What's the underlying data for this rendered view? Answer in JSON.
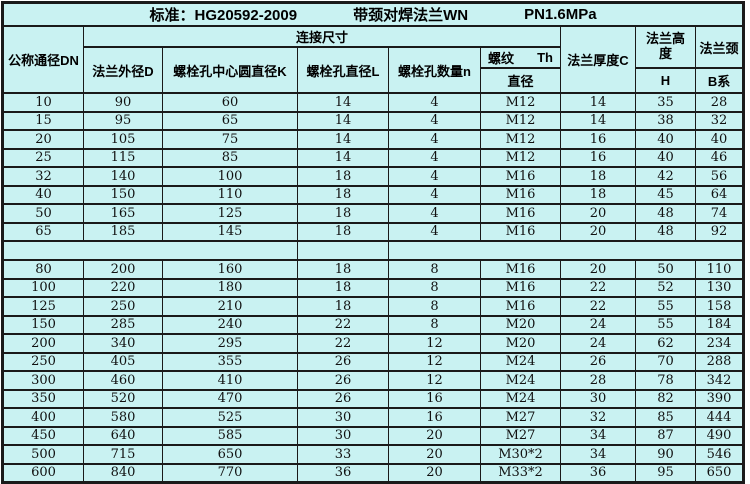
{
  "title": {
    "standard": "标准：HG20592-2009",
    "product": "带颈对焊法兰WN",
    "pressure": "PN1.6MPa"
  },
  "header": {
    "dn": "公称通径DN",
    "connection_group": "连接尺寸",
    "flange_od": "法兰外径D",
    "bolt_circle": "螺栓孔中心圆直径K",
    "bolt_hole_dia": "螺栓孔直径L",
    "bolt_count": "螺栓孔数量n",
    "thread": "螺纹",
    "thread_symbol": "Th",
    "thread_sub": "直径",
    "thickness": "法兰厚度C",
    "height_group": "法兰高度",
    "height_sub": "H",
    "neck_group": "法兰颈",
    "neck_sub": "B系"
  },
  "colors": {
    "cell_background": "#c9f2f2",
    "grid_line": "#1a1a1a",
    "page_background": "#ffffff"
  },
  "table": {
    "columns": [
      "公称通径DN",
      "法兰外径D",
      "螺栓孔中心圆直径K",
      "螺栓孔直径L",
      "螺栓孔数量n",
      "螺纹Th直径",
      "法兰厚度C",
      "法兰高度H",
      "法兰颈B系"
    ],
    "rows": [
      [
        "10",
        "90",
        "60",
        "14",
        "4",
        "M12",
        "14",
        "35",
        "28"
      ],
      [
        "15",
        "95",
        "65",
        "14",
        "4",
        "M12",
        "14",
        "38",
        "32"
      ],
      [
        "20",
        "105",
        "75",
        "14",
        "4",
        "M12",
        "16",
        "40",
        "40"
      ],
      [
        "25",
        "115",
        "85",
        "14",
        "4",
        "M12",
        "16",
        "40",
        "46"
      ],
      [
        "32",
        "140",
        "100",
        "18",
        "4",
        "M16",
        "18",
        "42",
        "56"
      ],
      [
        "40",
        "150",
        "110",
        "18",
        "4",
        "M16",
        "18",
        "45",
        "64"
      ],
      [
        "50",
        "165",
        "125",
        "18",
        "4",
        "M16",
        "20",
        "48",
        "74"
      ],
      [
        "65",
        "185",
        "145",
        "18",
        "4",
        "M16",
        "20",
        "48",
        "92"
      ],
      {
        "spacer": true
      },
      [
        "80",
        "200",
        "160",
        "18",
        "8",
        "M16",
        "20",
        "50",
        "110"
      ],
      [
        "100",
        "220",
        "180",
        "18",
        "8",
        "M16",
        "22",
        "52",
        "130"
      ],
      [
        "125",
        "250",
        "210",
        "18",
        "8",
        "M16",
        "22",
        "55",
        "158"
      ],
      [
        "150",
        "285",
        "240",
        "22",
        "8",
        "M20",
        "24",
        "55",
        "184"
      ],
      [
        "200",
        "340",
        "295",
        "22",
        "12",
        "M20",
        "24",
        "62",
        "234"
      ],
      [
        "250",
        "405",
        "355",
        "26",
        "12",
        "M24",
        "26",
        "70",
        "288"
      ],
      [
        "300",
        "460",
        "410",
        "26",
        "12",
        "M24",
        "28",
        "78",
        "342"
      ],
      [
        "350",
        "520",
        "470",
        "26",
        "16",
        "M24",
        "30",
        "82",
        "390"
      ],
      [
        "400",
        "580",
        "525",
        "30",
        "16",
        "M27",
        "32",
        "85",
        "444"
      ],
      [
        "450",
        "640",
        "585",
        "30",
        "20",
        "M27",
        "34",
        "87",
        "490"
      ],
      [
        "500",
        "715",
        "650",
        "33",
        "20",
        "M30*2",
        "34",
        "90",
        "546"
      ],
      [
        "600",
        "840",
        "770",
        "36",
        "20",
        "M33*2",
        "36",
        "95",
        "650"
      ]
    ]
  }
}
